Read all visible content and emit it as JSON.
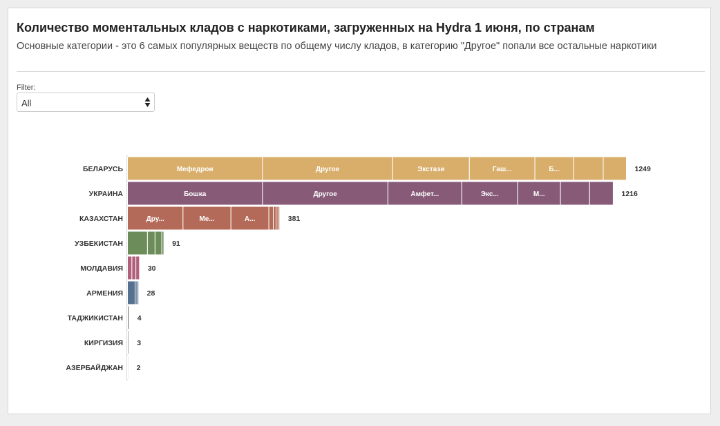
{
  "header": {
    "title": "Количество моментальных кладов с наркотиками, загруженных на Hydra 1 июня, по странам",
    "subtitle": "Основные категории - это 6 самых популярных веществ по общему числу кладов, в категорию \"Другое\" попали все остальные наркотики"
  },
  "filter": {
    "label": "Filter:",
    "value": "All"
  },
  "chart_data": {
    "type": "bar",
    "orientation": "horizontal",
    "stacked": true,
    "xlim": [
      0,
      1249
    ],
    "categories": [
      {
        "name": "БЕЛАРУСЬ",
        "total": 1249,
        "color": "#d9ae6b",
        "segments": [
          {
            "label": "Мефедрон",
            "value": 338
          },
          {
            "label": "Другое",
            "value": 326
          },
          {
            "label": "Экстази",
            "value": 192
          },
          {
            "label": "Гаш...",
            "value": 164
          },
          {
            "label": "Б...",
            "value": 97
          },
          {
            "label": "",
            "value": 74
          },
          {
            "label": "",
            "value": 58
          }
        ]
      },
      {
        "name": "УКРАИНА",
        "total": 1216,
        "color": "#875b78",
        "segments": [
          {
            "label": "Бошка",
            "value": 338
          },
          {
            "label": "Другое",
            "value": 314
          },
          {
            "label": "Амфет...",
            "value": 185
          },
          {
            "label": "Экс...",
            "value": 140
          },
          {
            "label": "М...",
            "value": 107
          },
          {
            "label": "",
            "value": 73
          },
          {
            "label": "",
            "value": 59
          }
        ]
      },
      {
        "name": "КАЗАХСТАН",
        "total": 381,
        "color": "#b46a58",
        "segments": [
          {
            "label": "Дру...",
            "value": 139
          },
          {
            "label": "Ме...",
            "value": 120
          },
          {
            "label": "А...",
            "value": 95
          },
          {
            "label": "",
            "value": 11
          },
          {
            "label": "",
            "value": 7
          },
          {
            "label": "",
            "value": 5
          },
          {
            "label": "",
            "value": 4
          }
        ]
      },
      {
        "name": "УЗБЕКИСТАН",
        "total": 91,
        "color": "#6c8c5a",
        "segments": [
          {
            "label": "",
            "value": 50
          },
          {
            "label": "",
            "value": 19
          },
          {
            "label": "",
            "value": 17
          },
          {
            "label": "",
            "value": 5
          }
        ]
      },
      {
        "name": "МОЛДАВИЯ",
        "total": 30,
        "color": "#b0607a",
        "segments": [
          {
            "label": "",
            "value": 11
          },
          {
            "label": "",
            "value": 10
          },
          {
            "label": "",
            "value": 9
          }
        ]
      },
      {
        "name": "АРМЕНИЯ",
        "total": 28,
        "color": "#56708f",
        "segments": [
          {
            "label": "",
            "value": 19
          },
          {
            "label": "",
            "value": 5
          },
          {
            "label": "",
            "value": 4
          }
        ]
      },
      {
        "name": "ТАДЖИКИСТАН",
        "total": 4,
        "color": "#8a8a8a",
        "segments": [
          {
            "label": "",
            "value": 4
          }
        ]
      },
      {
        "name": "КИРГИЗИЯ",
        "total": 3,
        "color": "#8a8a8a",
        "segments": [
          {
            "label": "",
            "value": 3
          }
        ]
      },
      {
        "name": "АЗЕРБАЙДЖАН",
        "total": 2,
        "color": "#8a8a8a",
        "segments": [
          {
            "label": "",
            "value": 2
          }
        ]
      }
    ]
  }
}
